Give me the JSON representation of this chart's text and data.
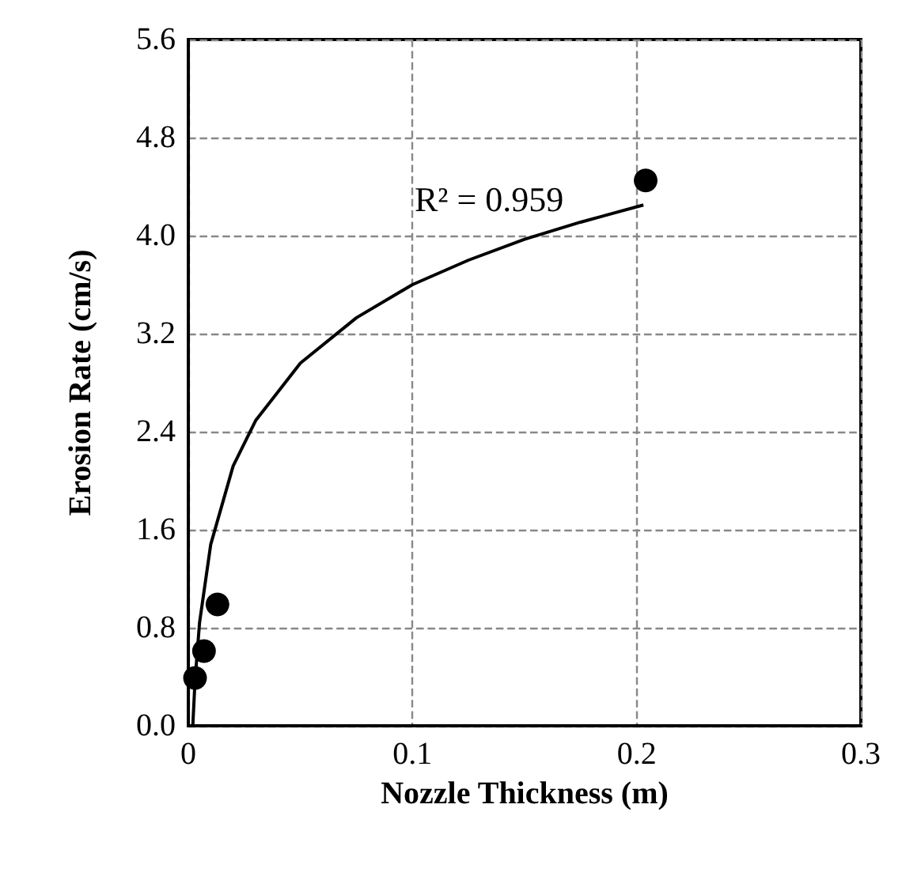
{
  "chart_data": {
    "type": "scatter",
    "xlabel": "Nozzle Thickness (m)",
    "ylabel": "Erosion Rate (cm/s)",
    "series": [
      {
        "color": "#000000",
        "marker": "circle",
        "x": [
          0.003,
          0.007,
          0.013,
          0.204
        ],
        "values": [
          0.39,
          0.61,
          0.99,
          4.45
        ]
      },
      {
        "type": "line",
        "color": "#000000",
        "marker": "none",
        "line_style": "solid",
        "x": [
          0.002,
          0.003,
          0.005,
          0.01,
          0.02,
          0.03,
          0.05,
          0.075,
          0.1,
          0.125,
          0.15,
          0.175,
          0.203
        ],
        "values": [
          0,
          0.37,
          0.84,
          1.48,
          2.12,
          2.49,
          2.96,
          3.33,
          3.6,
          3.8,
          3.97,
          4.11,
          4.25
        ]
      }
    ],
    "annotations": [
      "R² = 0.959"
    ],
    "xlim": [
      0,
      0.3
    ],
    "xticks": [
      0,
      0.1,
      0.2,
      0.3
    ],
    "ylim": [
      0,
      5.6
    ],
    "yticks": [
      {
        "value": 0,
        "label": "0.0"
      },
      {
        "value": 0.8,
        "label": "0.8"
      },
      {
        "value": 1.6,
        "label": "1.6"
      },
      {
        "value": 2.4,
        "label": "2.4"
      },
      {
        "value": 3.2,
        "label": "3.2"
      },
      {
        "value": 4,
        "label": "4.0"
      },
      {
        "value": 4.8,
        "label": "4.8"
      },
      {
        "value": 5.6,
        "label": "5.6"
      }
    ],
    "grid": true
  }
}
